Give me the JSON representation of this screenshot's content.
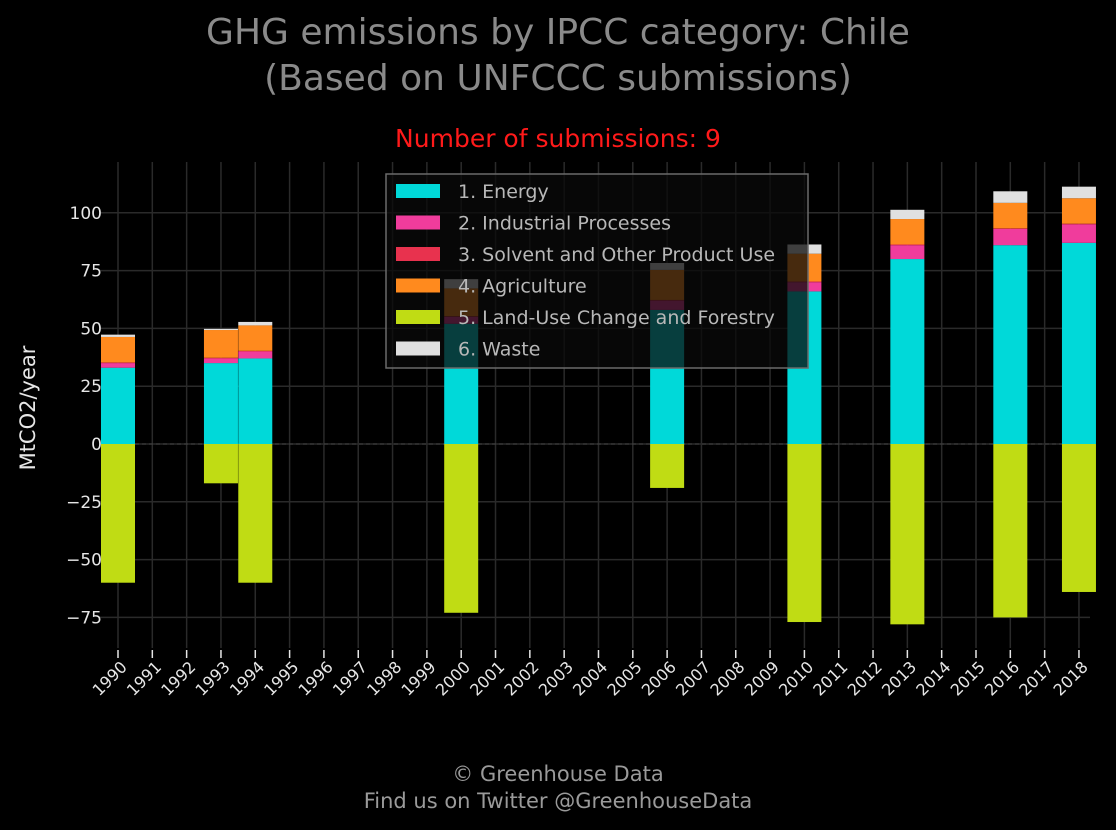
{
  "title_line1": "GHG emissions by IPCC category: Chile",
  "title_line2": "(Based on UNFCCC submissions)",
  "subtitle": "Number of submissions: 9",
  "credit_line1": "© Greenhouse Data",
  "credit_line2": "Find us on Twitter @GreenhouseData",
  "colors": {
    "background": "#000000",
    "grid": "#2a2a2a",
    "tick_text": "#e6e6e6",
    "subtitle": "#ff1a1a"
  },
  "chart_data": {
    "type": "bar",
    "stacked": true,
    "title": "GHG emissions by IPCC category: Chile",
    "ylabel": "MtCO2/year",
    "xlabel": "",
    "ylim": [
      -88,
      120
    ],
    "yticks": [
      100,
      75,
      50,
      25,
      0,
      -25,
      -50,
      -75
    ],
    "ytick_labels": [
      "100",
      "75",
      "50",
      "25",
      "0",
      "−25",
      "−50",
      "−75"
    ],
    "grid": true,
    "legend_position": "top-center",
    "categories": [
      "1990",
      "1991",
      "1992",
      "1993",
      "1994",
      "1995",
      "1996",
      "1997",
      "1998",
      "1999",
      "2000",
      "2001",
      "2002",
      "2003",
      "2004",
      "2005",
      "2006",
      "2007",
      "2008",
      "2009",
      "2010",
      "2011",
      "2012",
      "2013",
      "2014",
      "2015",
      "2016",
      "2017",
      "2018"
    ],
    "series": [
      {
        "name": "1. Energy",
        "color": "#00d9d9",
        "values": [
          33,
          null,
          null,
          35,
          37,
          null,
          null,
          null,
          null,
          null,
          52,
          null,
          null,
          null,
          null,
          null,
          58,
          null,
          null,
          null,
          66,
          null,
          null,
          80,
          null,
          null,
          86,
          null,
          87
        ]
      },
      {
        "name": "2. Industrial Processes",
        "color": "#f03c9c",
        "values": [
          2,
          null,
          null,
          2,
          3,
          null,
          null,
          null,
          null,
          null,
          3,
          null,
          null,
          null,
          null,
          null,
          4,
          null,
          null,
          null,
          4,
          null,
          null,
          6,
          null,
          null,
          7,
          null,
          8
        ]
      },
      {
        "name": "3. Solvent and Other Product Use",
        "color": "#e8324e",
        "values": [
          0.3,
          null,
          null,
          0.3,
          0.3,
          null,
          null,
          null,
          null,
          null,
          0.3,
          null,
          null,
          null,
          null,
          null,
          0.3,
          null,
          null,
          null,
          0.3,
          null,
          null,
          0.3,
          null,
          null,
          0.3,
          null,
          0.3
        ]
      },
      {
        "name": "4. Agriculture",
        "color": "#ff8a1e",
        "values": [
          11,
          null,
          null,
          12,
          11,
          null,
          null,
          null,
          null,
          null,
          12,
          null,
          null,
          null,
          null,
          null,
          13,
          null,
          null,
          null,
          12,
          null,
          null,
          11,
          null,
          null,
          11,
          null,
          11
        ]
      },
      {
        "name": "5. Land-Use Change and Forestry",
        "color": "#c0dc14",
        "values": [
          -60,
          null,
          null,
          -17,
          -60,
          null,
          null,
          null,
          null,
          null,
          -73,
          null,
          null,
          null,
          null,
          null,
          -19,
          null,
          null,
          null,
          -77,
          null,
          null,
          -78,
          null,
          null,
          -75,
          null,
          -64
        ]
      },
      {
        "name": "6. Waste",
        "color": "#e0e0e0",
        "values": [
          1,
          null,
          null,
          0.5,
          1.5,
          null,
          null,
          null,
          null,
          null,
          4,
          null,
          null,
          null,
          null,
          null,
          3,
          null,
          null,
          null,
          4,
          null,
          null,
          4,
          null,
          null,
          5,
          null,
          5
        ]
      }
    ]
  }
}
